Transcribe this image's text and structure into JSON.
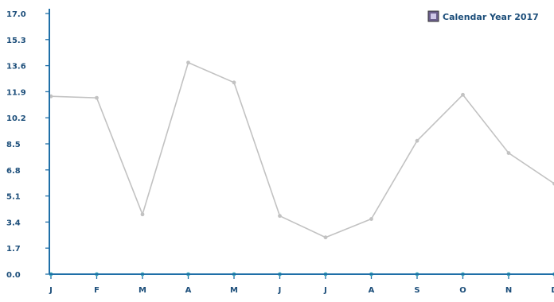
{
  "chart_data": {
    "type": "line",
    "categories": [
      "J",
      "F",
      "M",
      "A",
      "M",
      "J",
      "J",
      "A",
      "S",
      "O",
      "N",
      "D"
    ],
    "yticks": [
      "17.0",
      "15.3",
      "13.6",
      "11.9",
      "10.2",
      "8.5",
      "6.8",
      "5.1",
      "3.4",
      "1.7",
      "0.0"
    ],
    "ylim": [
      0,
      17.0
    ],
    "grid": false,
    "legend_position": "top-right",
    "series": [
      {
        "name": "Calendar Year 2017",
        "values": [
          11.6,
          11.5,
          3.9,
          13.8,
          12.5,
          3.8,
          2.4,
          3.6,
          8.7,
          11.7,
          7.9,
          5.9
        ]
      },
      {
        "values": [
          0,
          0,
          0,
          0,
          0,
          0,
          0,
          0,
          0,
          0,
          0,
          0
        ]
      }
    ],
    "colors": {
      "axis": "#1f6fa8",
      "line": "#c2c2c2",
      "baseline": "#3aa9b8",
      "text": "#1c4e7a",
      "legend_swatch": "#6b5f8c"
    }
  }
}
